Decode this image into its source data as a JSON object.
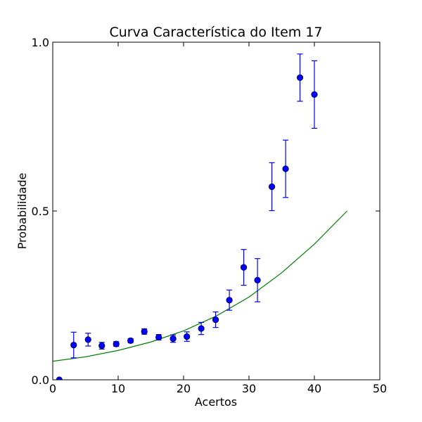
{
  "chart_data": {
    "type": "scatter",
    "title": "Curva Característica do Item 17",
    "xlabel": "Acertos",
    "ylabel": "Probabilidade",
    "xlim": [
      0,
      50
    ],
    "ylim": [
      0.0,
      1.0
    ],
    "x_ticks": [
      "0",
      "10",
      "20",
      "30",
      "40",
      "50"
    ],
    "y_ticks": [
      "0.0",
      "0.5",
      "1.0"
    ],
    "grid": false,
    "legend": "none",
    "colors": {
      "points": "#0000ff",
      "errorbars": "#0000ff",
      "curve": "#008000"
    },
    "points": [
      {
        "x": 1.0,
        "y": 0.0,
        "err": 0.0
      },
      {
        "x": 3.2,
        "y": 0.103,
        "err": 0.038
      },
      {
        "x": 5.4,
        "y": 0.119,
        "err": 0.019
      },
      {
        "x": 7.5,
        "y": 0.101,
        "err": 0.01
      },
      {
        "x": 9.7,
        "y": 0.106,
        "err": 0.007
      },
      {
        "x": 11.9,
        "y": 0.116,
        "err": 0.006
      },
      {
        "x": 14.0,
        "y": 0.143,
        "err": 0.008
      },
      {
        "x": 16.2,
        "y": 0.126,
        "err": 0.008
      },
      {
        "x": 18.4,
        "y": 0.122,
        "err": 0.011
      },
      {
        "x": 20.5,
        "y": 0.128,
        "err": 0.014
      },
      {
        "x": 22.7,
        "y": 0.152,
        "err": 0.018
      },
      {
        "x": 24.9,
        "y": 0.178,
        "err": 0.023
      },
      {
        "x": 27.0,
        "y": 0.236,
        "err": 0.03
      },
      {
        "x": 29.2,
        "y": 0.333,
        "err": 0.053
      },
      {
        "x": 31.3,
        "y": 0.295,
        "err": 0.064
      },
      {
        "x": 33.5,
        "y": 0.572,
        "err": 0.071
      },
      {
        "x": 35.6,
        "y": 0.625,
        "err": 0.085
      },
      {
        "x": 37.8,
        "y": 0.895,
        "err": 0.07
      },
      {
        "x": 40.0,
        "y": 0.845,
        "err": 0.1
      }
    ],
    "curve": {
      "x": [
        0,
        5,
        10,
        15,
        20,
        25,
        30,
        35,
        40,
        45
      ],
      "y": [
        0.055,
        0.068,
        0.087,
        0.112,
        0.145,
        0.189,
        0.245,
        0.317,
        0.402,
        0.5
      ]
    }
  }
}
